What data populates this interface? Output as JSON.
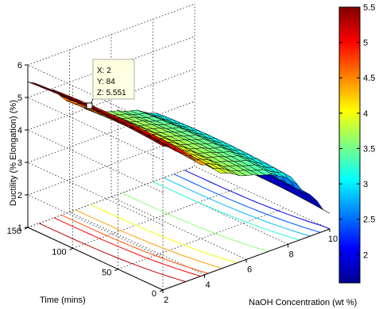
{
  "chart_data": {
    "type": "surface3d",
    "title": "",
    "xlabel": "NaOH Concentration (wt %)",
    "ylabel": "Time (mins)",
    "zlabel": "Ductility (% Elongation) (%)",
    "x_ticks": [
      "2",
      "4",
      "6",
      "8",
      "10"
    ],
    "y_ticks": [
      "0",
      "50",
      "100",
      "150"
    ],
    "z_ticks": [
      "1",
      "2",
      "3",
      "4",
      "5",
      "6"
    ],
    "xlim": [
      2,
      10
    ],
    "ylim": [
      0,
      150
    ],
    "zlim": [
      1,
      6
    ],
    "colorbar": {
      "colormap": "jet",
      "range": [
        1.6,
        5.5
      ],
      "ticks": [
        "5.5",
        "5",
        "4.5",
        "4",
        "3.5",
        "3",
        "2.5",
        "2"
      ]
    },
    "surface_profile_vs_naoh": [
      {
        "x": 2,
        "z": 5.551
      },
      {
        "x": 3,
        "z": 5.1
      },
      {
        "x": 4,
        "z": 4.5
      },
      {
        "x": 5,
        "z": 4.0
      },
      {
        "x": 6,
        "z": 3.7
      },
      {
        "x": 7,
        "z": 3.5
      },
      {
        "x": 8,
        "z": 3.2
      },
      {
        "x": 9,
        "z": 2.4
      },
      {
        "x": 10,
        "z": 1.6
      }
    ],
    "contour_projection": true,
    "datatip": {
      "x_label": "X: 2",
      "y_label": "Y: 84",
      "z_label": "Z: 5.551",
      "x": 2,
      "y": 84,
      "z": 5.551
    },
    "grid": true
  }
}
